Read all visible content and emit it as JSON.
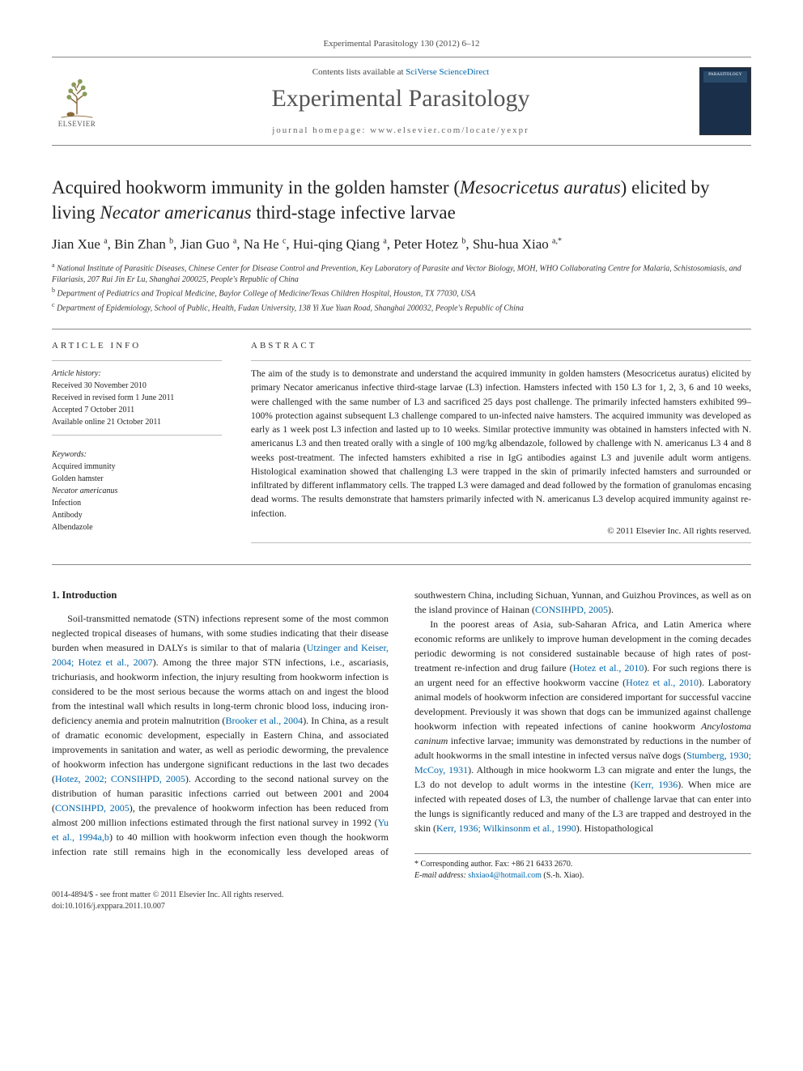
{
  "journal_ref": "Experimental Parasitology 130 (2012) 6–12",
  "header": {
    "contents_prefix": "Contents lists available at ",
    "contents_link": "SciVerse ScienceDirect",
    "journal_name": "Experimental Parasitology",
    "homepage_prefix": "journal homepage: ",
    "homepage_url": "www.elsevier.com/locate/yexpr",
    "publisher_logo_text": "ELSEVIER",
    "cover_text": "PARASITOLOGY"
  },
  "article": {
    "title_html": "Acquired hookworm immunity in the golden hamster (<em>Mesocricetus auratus</em>) elicited by living <em>Necator americanus</em> third-stage infective larvae",
    "authors_html": "Jian Xue <sup>a</sup>, Bin Zhan <sup>b</sup>, Jian Guo <sup>a</sup>, Na He <sup>c</sup>, Hui-qing Qiang <sup>a</sup>, Peter Hotez <sup>b</sup>, Shu-hua Xiao <sup>a,*</sup>",
    "affiliations": [
      "<sup>a</sup> National Institute of Parasitic Diseases, Chinese Center for Disease Control and Prevention, Key Laboratory of Parasite and Vector Biology, MOH, WHO Collaborating Centre for Malaria, Schistosomiasis, and Filariasis, 207 Rui Jin Er Lu, Shanghai 200025, People's Republic of China",
      "<sup>b</sup> Department of Pediatrics and Tropical Medicine, Baylor College of Medicine/Texas Children Hospital, Houston, TX 77030, USA",
      "<sup>c</sup> Department of Epidemiology, School of Public, Health, Fudan University, 138 Yi Xue Yuan Road, Shanghai 200032, People's Republic of China"
    ]
  },
  "info": {
    "label": "ARTICLE INFO",
    "history_label": "Article history:",
    "history": [
      "Received 30 November 2010",
      "Received in revised form 1 June 2011",
      "Accepted 7 October 2011",
      "Available online 21 October 2011"
    ],
    "keywords_label": "Keywords:",
    "keywords": [
      "Acquired immunity",
      "Golden hamster",
      "Necator americanus",
      "Infection",
      "Antibody",
      "Albendazole"
    ]
  },
  "abstract": {
    "label": "ABSTRACT",
    "text": "The aim of the study is to demonstrate and understand the acquired immunity in golden hamsters (Mesocricetus auratus) elicited by primary Necator americanus infective third-stage larvae (L3) infection. Hamsters infected with 150 L3 for 1, 2, 3, 6 and 10 weeks, were challenged with the same number of L3 and sacrificed 25 days post challenge. The primarily infected hamsters exhibited 99–100% protection against subsequent L3 challenge compared to un-infected naive hamsters. The acquired immunity was developed as early as 1 week post L3 infection and lasted up to 10 weeks. Similar protective immunity was obtained in hamsters infected with N. americanus L3 and then treated orally with a single of 100 mg/kg albendazole, followed by challenge with N. americanus L3 4 and 8 weeks post-treatment. The infected hamsters exhibited a rise in IgG antibodies against L3 and juvenile adult worm antigens. Histological examination showed that challenging L3 were trapped in the skin of primarily infected hamsters and surrounded or infiltrated by different inflammatory cells. The trapped L3 were damaged and dead followed by the formation of granulomas encasing dead worms. The results demonstrate that hamsters primarily infected with N. americanus L3 develop acquired immunity against re-infection.",
    "copyright": "© 2011 Elsevier Inc. All rights reserved."
  },
  "body": {
    "heading": "1. Introduction",
    "p1_html": "Soil-transmitted nematode (STN) infections represent some of the most common neglected tropical diseases of humans, with some studies indicating that their disease burden when measured in DALYs is similar to that of malaria (<span class='cite'>Utzinger and Keiser, 2004; Hotez et al., 2007</span>). Among the three major STN infections, i.e., ascariasis, trichuriasis, and hookworm infection, the injury resulting from hookworm infection is considered to be the most serious because the worms attach on and ingest the blood from the intestinal wall which results in long-term chronic blood loss, inducing iron-deficiency anemia and protein malnutrition (<span class='cite'>Brooker et al., 2004</span>). In China, as a result of dramatic economic development, especially in Eastern China, and associated improvements in sanitation and water, as well as periodic deworming, the prevalence of hookworm infection has undergone significant reductions in the last two decades (<span class='cite'>Hotez, 2002; CONSIHPD, 2005</span>). According to the second national survey on the distribution of human parasitic infections carried out between 2001 and 2004 (<span class='cite'>CONSIHPD, 2005</span>), the prevalence of hookworm infection has been reduced from almost 200 million infections estimated through the first national survey in 1992 (<span class='cite'>Yu et al., 1994a,b</span>) to 40 million with hookworm infection even though the hookworm infection rate still remains high in the economically less developed areas of southwestern China, including Sichuan, Yunnan, and Guizhou Provinces, as well as on the island province of Hainan (<span class='cite'>CONSIHPD, 2005</span>).",
    "p2_html": "In the poorest areas of Asia, sub-Saharan Africa, and Latin America where economic reforms are unlikely to improve human development in the coming decades periodic deworming is not considered sustainable because of high rates of post-treatment re-infection and drug failure (<span class='cite'>Hotez et al., 2010</span>). For such regions there is an urgent need for an effective hookworm vaccine (<span class='cite'>Hotez et al., 2010</span>). Laboratory animal models of hookworm infection are considered important for successful vaccine development. Previously it was shown that dogs can be immunized against challenge hookworm infection with repeated infections of canine hookworm <em>Ancylostoma caninum</em> infective larvae; immunity was demonstrated by reductions in the number of adult hookworms in the small intestine in infected versus naïve dogs (<span class='cite'>Stumberg, 1930; McCoy, 1931</span>). Although in mice hookworm L3 can migrate and enter the lungs, the L3 do not develop to adult worms in the intestine (<span class='cite'>Kerr, 1936</span>). When mice are infected with repeated doses of L3, the number of challenge larvae that can enter into the lungs is significantly reduced and many of the L3 are trapped and destroyed in the skin (<span class='cite'>Kerr, 1936; Wilkinsonm et al., 1990</span>). Histopathological"
  },
  "footer": {
    "corr": "* Corresponding author. Fax: +86 21 6433 2670.",
    "email_label": "E-mail address:",
    "email": "shxiao4@hotmail.com",
    "email_suffix": " (S.-h. Xiao).",
    "issn_line": "0014-4894/$ - see front matter © 2011 Elsevier Inc. All rights reserved.",
    "doi_line": "doi:10.1016/j.exppara.2011.10.007"
  },
  "colors": {
    "link": "#0066aa",
    "rule": "#888888",
    "text": "#222222"
  }
}
